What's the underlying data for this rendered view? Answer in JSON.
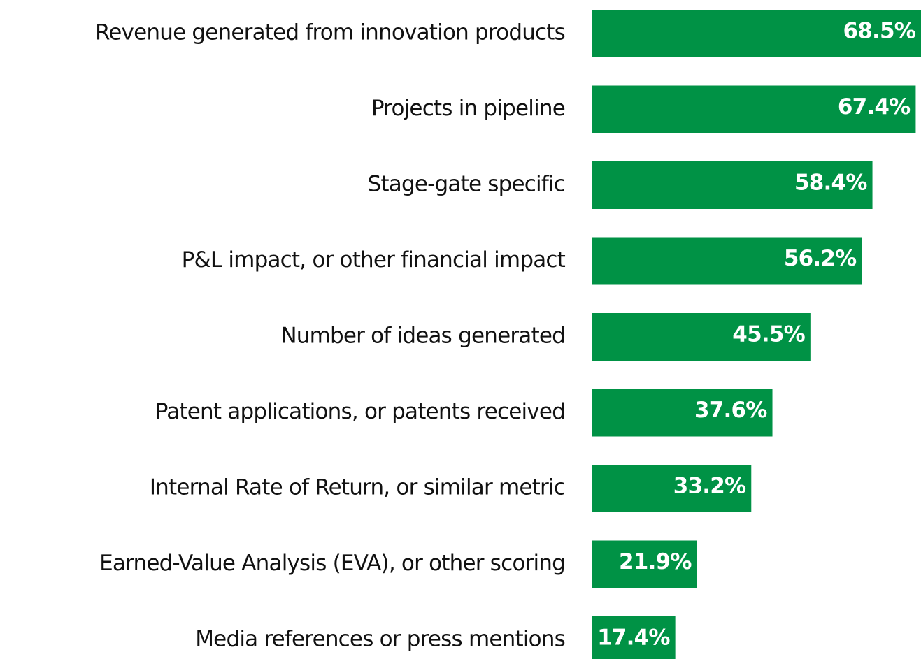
{
  "chart_data": {
    "type": "bar",
    "orientation": "horizontal",
    "categories": [
      "Revenue generated from innovation products",
      "Projects in pipeline",
      "Stage-gate specific",
      "P&L impact, or other financial impact",
      "Number of ideas generated",
      "Patent applications, or patents received",
      "Internal Rate of Return, or similar metric",
      "Earned-Value Analysis (EVA), or other scoring",
      "Media references or press mentions"
    ],
    "values": [
      68.5,
      67.4,
      58.4,
      56.2,
      45.5,
      37.6,
      33.2,
      21.9,
      17.4
    ],
    "value_labels": [
      "68.5%",
      "67.4%",
      "58.4%",
      "56.2%",
      "45.5%",
      "37.6%",
      "33.2%",
      "21.9%",
      "17.4%"
    ],
    "color": "#009245"
  }
}
